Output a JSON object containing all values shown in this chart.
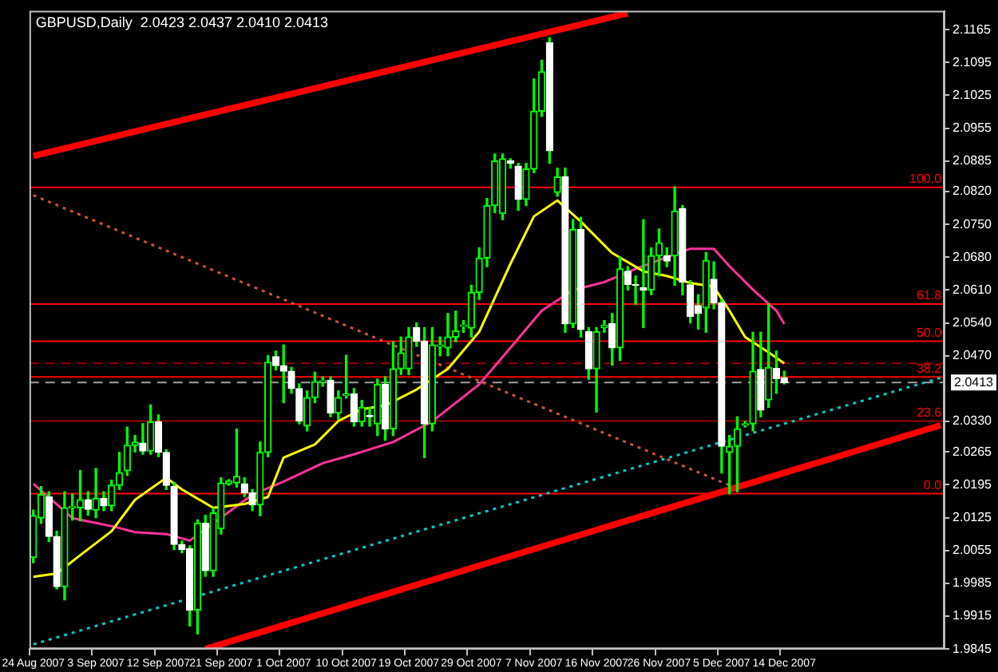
{
  "chart_data": {
    "type": "candlestick",
    "title": "GBPUSD,Daily  2.0423 2.0437 2.0410 2.0413",
    "categories": [
      "24 Aug 2007",
      null,
      null,
      null,
      null,
      null,
      null,
      null,
      "3 Sep 2007",
      null,
      null,
      null,
      null,
      null,
      null,
      null,
      "12 Sep 2007",
      null,
      null,
      null,
      null,
      null,
      null,
      null,
      "21 Sep 2007",
      null,
      null,
      null,
      null,
      null,
      null,
      null,
      "1 Oct 2007",
      null,
      null,
      null,
      null,
      null,
      null,
      null,
      "10 Oct 2007",
      null,
      null,
      null,
      null,
      null,
      null,
      null,
      "19 Oct 2007",
      null,
      null,
      null,
      null,
      null,
      null,
      null,
      "29 Oct 2007",
      null,
      null,
      null,
      null,
      null,
      null,
      null,
      "7 Nov 2007",
      null,
      null,
      null,
      null,
      null,
      null,
      null,
      "16 Nov 2007",
      null,
      null,
      null,
      null,
      null,
      null,
      null,
      "26 Nov 2007",
      null,
      null,
      null,
      null,
      null,
      null,
      null,
      "5 Dec 2007",
      null,
      null,
      null,
      null,
      null,
      null,
      null,
      "14 Dec 2007",
      null,
      null,
      null,
      null,
      null,
      null,
      null,
      null,
      null,
      null,
      null,
      null,
      null,
      null,
      null,
      null,
      null,
      null,
      null,
      null
    ],
    "ohlc": [
      [
        2.004,
        2.0141,
        2.0029,
        2.0129
      ],
      [
        2.0124,
        2.0191,
        2.0113,
        2.0174
      ],
      [
        2.0169,
        2.018,
        2.0074,
        2.0085
      ],
      [
        2.0085,
        2.0096,
        1.9973,
        1.9978
      ],
      [
        1.9978,
        2.018,
        1.995,
        2.0146
      ],
      [
        2.0146,
        2.0175,
        2.012,
        2.0149
      ],
      [
        2.0146,
        2.0225,
        2.0118,
        2.0163
      ],
      [
        2.0163,
        2.018,
        2.013,
        2.0143
      ],
      [
        2.0141,
        2.023,
        2.0125,
        2.0166
      ],
      [
        2.0166,
        2.018,
        2.014,
        2.015
      ],
      [
        2.015,
        2.0205,
        2.014,
        2.0194
      ],
      [
        2.0194,
        2.0264,
        2.0185,
        2.0221
      ],
      [
        2.0225,
        2.0318,
        2.0215,
        2.0279
      ],
      [
        2.0279,
        2.03,
        2.0265,
        2.0286
      ],
      [
        2.0284,
        2.0325,
        2.026,
        2.0267
      ],
      [
        2.0267,
        2.0365,
        2.026,
        2.0329
      ],
      [
        2.0329,
        2.0344,
        2.0255,
        2.0264
      ],
      [
        2.0264,
        2.027,
        2.0185,
        2.0194
      ],
      [
        2.0191,
        2.02,
        2.0057,
        2.0068
      ],
      [
        2.0068,
        2.0075,
        2.005,
        2.0057
      ],
      [
        2.0059,
        2.0065,
        1.9894,
        1.9928
      ],
      [
        1.9928,
        2.012,
        1.9877,
        2.0113
      ],
      [
        2.0113,
        2.013,
        2.0,
        2.0012
      ],
      [
        2.0012,
        2.0145,
        2.0,
        2.0135
      ],
      [
        2.0101,
        2.021,
        2.009,
        2.0199
      ],
      [
        2.0197,
        2.0206,
        2.0194,
        2.0203
      ],
      [
        2.0199,
        2.0314,
        2.019,
        2.0213
      ],
      [
        2.0197,
        2.021,
        2.017,
        2.0178
      ],
      [
        2.0178,
        2.0185,
        2.014,
        2.0152
      ],
      [
        2.0152,
        2.0286,
        2.0129,
        2.0264
      ],
      [
        2.0264,
        2.047,
        2.0255,
        2.0456
      ],
      [
        2.0468,
        2.048,
        2.044,
        2.0449
      ],
      [
        2.0449,
        2.0493,
        2.037,
        2.0437
      ],
      [
        2.0437,
        2.0445,
        2.039,
        2.04
      ],
      [
        2.04,
        2.041,
        2.0325,
        2.0331
      ],
      [
        2.032,
        2.0395,
        2.031,
        2.0381
      ],
      [
        2.0381,
        2.0435,
        2.037,
        2.0415
      ],
      [
        2.0415,
        2.0425,
        2.0405,
        2.0417
      ],
      [
        2.0418,
        2.0425,
        2.034,
        2.0348
      ],
      [
        2.0348,
        2.0395,
        2.0335,
        2.0381
      ],
      [
        2.0385,
        2.0471,
        2.038,
        2.0389
      ],
      [
        2.0389,
        2.04,
        2.032,
        2.0329
      ],
      [
        2.0329,
        2.0375,
        2.032,
        2.036
      ],
      [
        2.0343,
        2.036,
        2.032,
        2.034
      ],
      [
        2.0325,
        2.042,
        2.03,
        2.0409
      ],
      [
        2.0409,
        2.0425,
        2.029,
        2.0314
      ],
      [
        2.0314,
        2.05,
        2.03,
        2.0442
      ],
      [
        2.0442,
        2.051,
        2.043,
        2.0476
      ],
      [
        2.0442,
        2.053,
        2.043,
        2.051
      ],
      [
        2.053,
        2.054,
        2.049,
        2.0501
      ],
      [
        2.0501,
        2.053,
        2.0253,
        2.0325
      ],
      [
        2.0325,
        2.053,
        2.031,
        2.0493
      ],
      [
        2.049,
        2.051,
        2.047,
        2.0493
      ],
      [
        2.0487,
        2.056,
        2.047,
        2.051
      ],
      [
        2.051,
        2.0565,
        2.05,
        2.0523
      ],
      [
        2.0533,
        2.0545,
        2.052,
        2.0535
      ],
      [
        2.0529,
        2.062,
        2.051,
        2.0605
      ],
      [
        2.0605,
        2.07,
        2.059,
        2.0678
      ],
      [
        2.0678,
        2.0805,
        2.066,
        2.079
      ],
      [
        2.079,
        2.09,
        2.0775,
        2.0885
      ],
      [
        2.0773,
        2.09,
        2.076,
        2.089
      ],
      [
        2.0885,
        2.089,
        2.087,
        2.088
      ],
      [
        2.0874,
        2.088,
        2.078,
        2.0803
      ],
      [
        2.0803,
        2.088,
        2.079,
        2.0868
      ],
      [
        2.0868,
        2.106,
        2.086,
        2.0991
      ],
      [
        2.0991,
        2.11,
        2.098,
        2.1075
      ],
      [
        2.1137,
        2.1148,
        2.088,
        2.0907
      ],
      [
        2.0818,
        2.087,
        2.081,
        2.0851
      ],
      [
        2.0851,
        2.087,
        2.052,
        2.0538
      ],
      [
        2.0538,
        2.076,
        2.053,
        2.0739
      ],
      [
        2.0739,
        2.0765,
        2.051,
        2.0526
      ],
      [
        2.0521,
        2.053,
        2.042,
        2.0442
      ],
      [
        2.0442,
        2.053,
        2.035,
        2.0521
      ],
      [
        2.053,
        2.0545,
        2.052,
        2.0535
      ],
      [
        2.0538,
        2.056,
        2.045,
        2.0487
      ],
      [
        2.0487,
        2.068,
        2.046,
        2.0655
      ],
      [
        2.065,
        2.066,
        2.061,
        2.0622
      ],
      [
        2.0622,
        2.064,
        2.058,
        2.062
      ],
      [
        2.0615,
        2.076,
        2.053,
        2.061
      ],
      [
        2.061,
        2.07,
        2.06,
        2.0683
      ],
      [
        2.0683,
        2.074,
        2.064,
        2.0711
      ],
      [
        2.0683,
        2.07,
        2.066,
        2.0672
      ],
      [
        2.0683,
        2.083,
        2.062,
        2.0778
      ],
      [
        2.0784,
        2.079,
        2.06,
        2.0627
      ],
      [
        2.0621,
        2.063,
        2.054,
        2.0554
      ],
      [
        2.0577,
        2.06,
        2.0527,
        2.056
      ],
      [
        2.0572,
        2.069,
        2.052,
        2.0673
      ],
      [
        2.0633,
        2.067,
        2.057,
        2.0583
      ],
      [
        2.0583,
        2.059,
        2.022,
        2.0277
      ],
      [
        2.0264,
        2.03,
        2.0176,
        2.0277
      ],
      [
        2.0277,
        2.034,
        2.018,
        2.0314
      ],
      [
        2.0322,
        2.033,
        2.0318,
        2.0325
      ],
      [
        2.0325,
        2.052,
        2.031,
        2.0437
      ],
      [
        2.0441,
        2.052,
        2.034,
        2.0354
      ],
      [
        2.0376,
        2.058,
        2.036,
        2.0445
      ],
      [
        2.0443,
        2.048,
        2.039,
        2.0421
      ],
      [
        2.0423,
        2.0437,
        2.041,
        2.0413
      ],
      null,
      null,
      null,
      null,
      null,
      null,
      null,
      null,
      null,
      null,
      null,
      null,
      null,
      null,
      null,
      null,
      null,
      null,
      null,
      null
    ],
    "series": [
      {
        "type": "line",
        "color": "#ffff00",
        "values": [
          1.9999,
          null,
          null,
          2.0006,
          null,
          null,
          2.0045,
          null,
          null,
          null,
          2.0096,
          null,
          null,
          2.0163,
          null,
          null,
          null,
          2.021,
          null,
          2.0185,
          null,
          null,
          null,
          2.0146,
          null,
          null,
          null,
          2.0154,
          null,
          null,
          2.0169,
          null,
          2.0253,
          null,
          null,
          null,
          2.0281,
          null,
          null,
          2.0331,
          null,
          null,
          2.0356,
          null,
          null,
          2.0364,
          null,
          null,
          null,
          2.0398,
          null,
          null,
          null,
          2.0442,
          null,
          null,
          null,
          2.0521,
          null,
          null,
          null,
          2.0666,
          null,
          null,
          2.0767,
          null,
          null,
          2.0801,
          null,
          null,
          2.0756,
          null,
          null,
          null,
          2.0689,
          null,
          null,
          null,
          2.065,
          null,
          null,
          2.064,
          null,
          null,
          2.0625,
          null,
          null,
          2.0617,
          null,
          2.0566,
          null,
          2.051,
          null,
          null,
          2.0477,
          null,
          2.0454,
          null,
          null,
          null,
          null,
          null,
          null,
          null,
          null,
          null,
          null,
          null,
          null,
          null,
          null,
          null,
          null,
          null,
          null,
          null,
          null
        ]
      },
      {
        "type": "line",
        "color": "#ff3399",
        "values": [
          2.0197,
          null,
          null,
          null,
          null,
          2.0124,
          null,
          null,
          null,
          null,
          2.0107,
          null,
          null,
          2.0094,
          null,
          null,
          null,
          2.009,
          null,
          null,
          2.0076,
          null,
          null,
          null,
          null,
          null,
          null,
          null,
          2.0174,
          null,
          null,
          null,
          2.0202,
          null,
          null,
          null,
          null,
          2.0241,
          null,
          null,
          null,
          2.026,
          null,
          null,
          null,
          null,
          2.0286,
          null,
          null,
          null,
          null,
          2.033,
          null,
          null,
          null,
          null,
          null,
          2.0409,
          null,
          null,
          null,
          2.0487,
          null,
          null,
          null,
          2.0566,
          null,
          null,
          null,
          2.061,
          null,
          null,
          null,
          2.0627,
          null,
          null,
          null,
          2.0655,
          null,
          null,
          null,
          2.068,
          null,
          null,
          2.0698,
          null,
          null,
          2.0698,
          null,
          2.0661,
          null,
          null,
          2.0611,
          null,
          null,
          2.0566,
          2.0538,
          null,
          null,
          null,
          null,
          null,
          null,
          null,
          null,
          null,
          null,
          null,
          null,
          null,
          null,
          null,
          null,
          null,
          null,
          null,
          null
        ]
      },
      {
        "type": "line",
        "color": "#ff0000",
        "values": [
          2.0896,
          null,
          null,
          null,
          null,
          null,
          null,
          null,
          null,
          null,
          null,
          null,
          null,
          null,
          null,
          null,
          null,
          null,
          null,
          null,
          null,
          null,
          null,
          null,
          null,
          null,
          null,
          null,
          null,
          null,
          null,
          null,
          null,
          null,
          null,
          null,
          null,
          null,
          null,
          null,
          null,
          null,
          null,
          null,
          null,
          null,
          null,
          null,
          null,
          null,
          null,
          null,
          null,
          null,
          null,
          null,
          null,
          null,
          null,
          null,
          null,
          null,
          null,
          null,
          null,
          null,
          null,
          null,
          null,
          null,
          null,
          null,
          null,
          null,
          null,
          null,
          2.12,
          null,
          null,
          null,
          null,
          null,
          null,
          null,
          null,
          null,
          null,
          null,
          null,
          null,
          null,
          null,
          null,
          null,
          null,
          null,
          null,
          null,
          null,
          null,
          null,
          null,
          null,
          null,
          null,
          null,
          null,
          null,
          null,
          null,
          null,
          null,
          null,
          null,
          null,
          null,
          null
        ]
      },
      {
        "type": "line",
        "color": "#ff0000",
        "values": [
          null,
          null,
          null,
          null,
          null,
          null,
          null,
          null,
          null,
          null,
          null,
          null,
          null,
          null,
          null,
          null,
          null,
          null,
          null,
          null,
          null,
          null,
          1.9845,
          null,
          null,
          null,
          null,
          null,
          null,
          null,
          null,
          null,
          null,
          null,
          null,
          null,
          null,
          null,
          null,
          null,
          null,
          null,
          null,
          null,
          null,
          null,
          null,
          null,
          null,
          null,
          null,
          null,
          null,
          null,
          null,
          null,
          null,
          null,
          null,
          null,
          null,
          null,
          null,
          null,
          null,
          null,
          null,
          null,
          null,
          null,
          null,
          null,
          null,
          null,
          null,
          null,
          null,
          null,
          null,
          null,
          null,
          null,
          null,
          null,
          null,
          null,
          null,
          null,
          null,
          null,
          null,
          null,
          null,
          null,
          null,
          null,
          null,
          null,
          null,
          null,
          null,
          null,
          null,
          null,
          null,
          null,
          null,
          null,
          null,
          null,
          null,
          null,
          null,
          null,
          null,
          null,
          2.0322
        ]
      },
      {
        "type": "line",
        "color": "#00cccc",
        "line_style": "dotted",
        "values": [
          1.9855,
          null,
          null,
          null,
          null,
          null,
          null,
          null,
          null,
          null,
          null,
          null,
          null,
          null,
          null,
          null,
          null,
          null,
          null,
          null,
          null,
          null,
          null,
          null,
          null,
          null,
          null,
          null,
          null,
          null,
          null,
          null,
          null,
          null,
          null,
          null,
          null,
          null,
          null,
          null,
          null,
          null,
          null,
          null,
          null,
          null,
          null,
          null,
          null,
          null,
          null,
          null,
          null,
          null,
          null,
          null,
          null,
          null,
          null,
          null,
          null,
          null,
          null,
          null,
          null,
          null,
          null,
          null,
          null,
          null,
          null,
          null,
          null,
          null,
          null,
          null,
          null,
          null,
          null,
          null,
          null,
          null,
          null,
          null,
          null,
          null,
          null,
          null,
          null,
          null,
          null,
          null,
          null,
          null,
          null,
          null,
          null,
          null,
          null,
          null,
          null,
          null,
          null,
          null,
          null,
          null,
          null,
          null,
          null,
          null,
          null,
          null,
          null,
          null,
          null,
          null,
          2.0423
        ]
      },
      {
        "type": "line",
        "color": "#cc5533",
        "line_style": "dotted",
        "values": [
          2.0812,
          null,
          null,
          null,
          null,
          null,
          null,
          null,
          null,
          null,
          null,
          null,
          null,
          null,
          null,
          null,
          null,
          null,
          null,
          null,
          null,
          null,
          null,
          null,
          null,
          null,
          null,
          null,
          null,
          null,
          null,
          null,
          null,
          null,
          null,
          null,
          null,
          null,
          null,
          null,
          null,
          null,
          null,
          null,
          null,
          null,
          null,
          null,
          null,
          null,
          null,
          null,
          null,
          null,
          null,
          null,
          null,
          null,
          null,
          null,
          null,
          null,
          null,
          null,
          null,
          null,
          null,
          null,
          null,
          null,
          null,
          null,
          null,
          null,
          null,
          null,
          null,
          null,
          null,
          null,
          null,
          null,
          null,
          null,
          null,
          null,
          null,
          null,
          null,
          2.0194,
          null,
          null,
          null,
          null,
          null,
          null,
          null,
          null,
          null,
          null,
          null,
          null,
          null,
          null,
          null,
          null,
          null,
          null,
          null,
          null,
          null,
          null,
          null,
          null,
          null,
          null,
          null
        ]
      }
    ],
    "ylim": [
      1.9845,
      2.1205
    ],
    "yticks": [
      2.1165,
      2.1095,
      2.1025,
      2.0955,
      2.0885,
      {
        "value": 2.082,
        "label": "2.0820"
      },
      {
        "value": 2.075,
        "label": "2.0750"
      },
      {
        "value": 2.068,
        "label": "2.0680"
      },
      {
        "value": 2.061,
        "label": "2.0610"
      },
      {
        "value": 2.054,
        "label": "2.0540"
      },
      {
        "value": 2.047,
        "label": "2.0470"
      },
      {
        "value": 2.033,
        "label": "2.0330"
      },
      2.0265,
      2.0195,
      2.0125,
      2.0055,
      1.9985,
      1.9915,
      1.9845
    ],
    "ref_lines": [
      {
        "axis": "y",
        "value": 2.0829,
        "color": "#ff0000"
      },
      {
        "axis": "y",
        "value": 2.058,
        "color": "#ff0000"
      },
      {
        "axis": "y",
        "value": 2.0501,
        "color": "#ff0000"
      },
      {
        "axis": "y",
        "value": 2.0454,
        "color": "#990000",
        "line_style": "dashed"
      },
      {
        "axis": "y",
        "value": 2.0425,
        "color": "#ff0000"
      },
      {
        "axis": "y",
        "value": 2.0413,
        "label": "2.0413",
        "color": "#a0a0a0",
        "line_style": "dashed"
      },
      {
        "axis": "y",
        "value": 2.0331,
        "color": "#990000"
      },
      {
        "axis": "y",
        "value": 2.0176,
        "color": "#ff0000"
      }
    ],
    "annotations": [
      {
        "text": "100.0",
        "y": 2.0829
      },
      {
        "text": "61.8",
        "y": 2.058
      },
      {
        "text": "50.0",
        "y": 2.0501
      },
      {
        "text": "38.2",
        "y": 2.0425
      },
      {
        "text": "23.6",
        "y": 2.0331
      },
      {
        "text": "0.0",
        "y": 2.0176
      }
    ]
  }
}
